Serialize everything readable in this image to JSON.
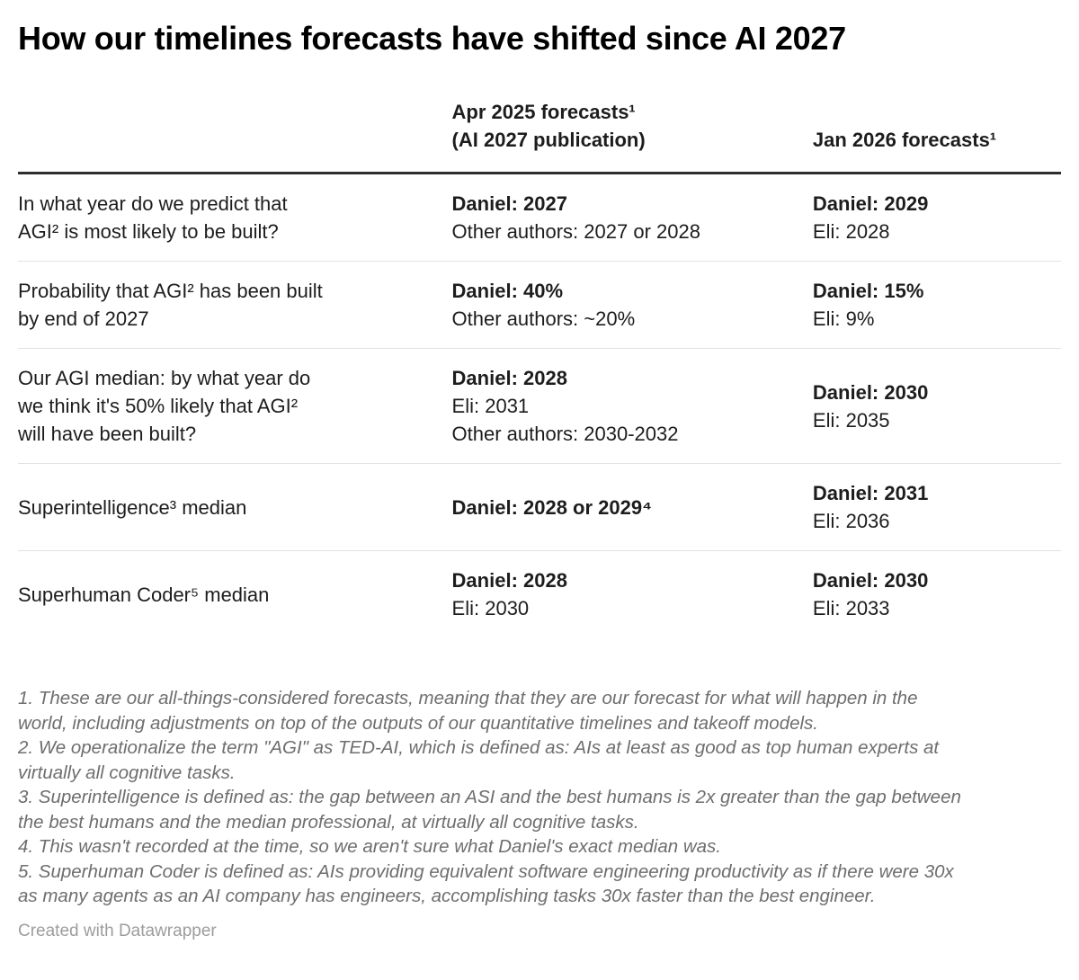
{
  "title": "How our timelines forecasts have shifted since AI 2027",
  "colors": {
    "text": "#1d1d1d",
    "footnote_text": "#6e6e6e",
    "attribution_text": "#9d9d9d",
    "header_rule": "#2e2e2e",
    "row_rule": "#e2e2e2"
  },
  "chart_data": {
    "type": "table",
    "title": "How our timelines forecasts have shifted since AI 2027",
    "headers": {
      "apr_line1": "Apr 2025 forecasts¹",
      "apr_line2": "(AI 2027 publication)",
      "jan": "Jan 2026 forecasts¹"
    },
    "rows": [
      {
        "label": "In what year do we predict that\nAGI² is most likely to be built?",
        "apr": [
          "Daniel: 2027",
          "Other authors: 2027 or 2028"
        ],
        "jan": [
          "Daniel: 2029",
          "Eli: 2028"
        ]
      },
      {
        "label": "Probability that AGI² has been built\nby end of 2027",
        "apr": [
          "Daniel: 40%",
          "Other authors: ~20%"
        ],
        "jan": [
          "Daniel: 15%",
          "Eli: 9%"
        ]
      },
      {
        "label": "Our AGI median: by what year do\nwe think it's 50% likely that AGI²\nwill have been built?",
        "apr": [
          "Daniel: 2028",
          "Eli: 2031",
          "Other authors: 2030-2032"
        ],
        "jan": [
          "Daniel: 2030",
          "Eli: 2035"
        ]
      },
      {
        "label": "Superintelligence³ median",
        "apr": [
          "Daniel: 2028 or 2029⁴"
        ],
        "jan": [
          "Daniel: 2031",
          "Eli: 2036"
        ]
      },
      {
        "label": "Superhuman Coder⁵ median",
        "apr": [
          "Daniel: 2028",
          "Eli: 2030"
        ],
        "jan": [
          "Daniel: 2030",
          "Eli: 2033"
        ]
      }
    ],
    "footnotes": [
      "1. These are our all-things-considered forecasts, meaning that they are our forecast for what will happen in the\nworld, including adjustments on top of the outputs of our quantitative timelines and takeoff models.",
      "2. We operationalize the term \"AGI\" as TED-AI, which is defined as: AIs at least as good as top human experts at\nvirtually all cognitive tasks.",
      "3. Superintelligence is defined as: the gap between an ASI and the best humans is 2x greater than the gap between\nthe best humans and the median professional, at virtually all cognitive tasks.",
      "4. This wasn't recorded at the time, so we aren't sure what Daniel's exact median was.",
      "5. Superhuman Coder is defined as: AIs providing equivalent software engineering productivity as if there were 30x\nas many agents as an AI company has engineers, accomplishing tasks 30x faster than the best engineer."
    ],
    "attribution": "Created with Datawrapper"
  }
}
